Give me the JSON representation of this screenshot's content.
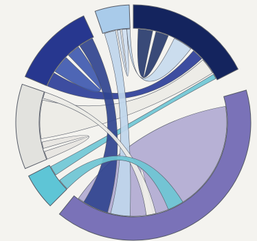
{
  "chart_data": {
    "type": "chord",
    "title": "",
    "legend": "none",
    "labels": "none",
    "groups": [
      {
        "id": "g-navy",
        "color": "#14245e",
        "start_deg": 0,
        "end_deg": 63
      },
      {
        "id": "g-purple",
        "color": "#7a72b8",
        "start_deg": 74,
        "end_deg": 219
      },
      {
        "id": "g-cyan",
        "color": "#5ec5d6",
        "start_deg": 225,
        "end_deg": 243
      },
      {
        "id": "g-lightgrey",
        "color": "#e2e2de",
        "start_deg": 247,
        "end_deg": 289
      },
      {
        "id": "g-blue",
        "color": "#27378f",
        "start_deg": 293,
        "end_deg": 335
      },
      {
        "id": "g-skyblue",
        "color": "#a9cbea",
        "start_deg": 341,
        "end_deg": 358
      }
    ],
    "chords": [
      {
        "id": "purple-self",
        "source": [
          80,
          168
        ],
        "target": [
          172,
          216
        ],
        "color": "#b1abd2"
      },
      {
        "id": "navy-self",
        "source": [
          3,
          12
        ],
        "target": [
          14,
          22
        ],
        "color": "#283c6e"
      },
      {
        "id": "navy-lightgrey",
        "source": [
          48,
          58
        ],
        "target": [
          260,
          284
        ],
        "color": "#ecebe6"
      },
      {
        "id": "navy-cyan",
        "source": [
          59,
          62
        ],
        "target": [
          236,
          242
        ],
        "color": "#6fc8d6"
      },
      {
        "id": "navy-blue",
        "source": [
          40,
          47
        ],
        "target": [
          293,
          302
        ],
        "color": "#2c3f99"
      },
      {
        "id": "blue-self",
        "source": [
          303,
          314
        ],
        "target": [
          316,
          324
        ],
        "color": "#3f5ab0"
      },
      {
        "id": "blue-purple",
        "source": [
          325,
          334
        ],
        "target": [
          196,
          212
        ],
        "color": "#30448f"
      },
      {
        "id": "skyblue-purple",
        "source": [
          342,
          349
        ],
        "target": [
          182,
          194
        ],
        "color": "#bfd6ec"
      },
      {
        "id": "skyblue-self",
        "source": [
          350,
          352
        ],
        "target": [
          353,
          356
        ],
        "color": "#cfe0f1"
      },
      {
        "id": "skyblue-navy",
        "source": [
          356,
          358
        ],
        "target": [
          26,
          38
        ],
        "color": "#c7dbee"
      },
      {
        "id": "lightgrey-self",
        "source": [
          247,
          252
        ],
        "target": [
          254,
          258
        ],
        "color": "#e6e5e1"
      },
      {
        "id": "lightgrey-purple",
        "source": [
          285,
          289
        ],
        "target": [
          166,
          172
        ],
        "color": "#ecebe7"
      },
      {
        "id": "cyan-purple",
        "source": [
          225,
          232
        ],
        "target": [
          148,
          158
        ],
        "color": "#6cc6d4"
      }
    ]
  }
}
